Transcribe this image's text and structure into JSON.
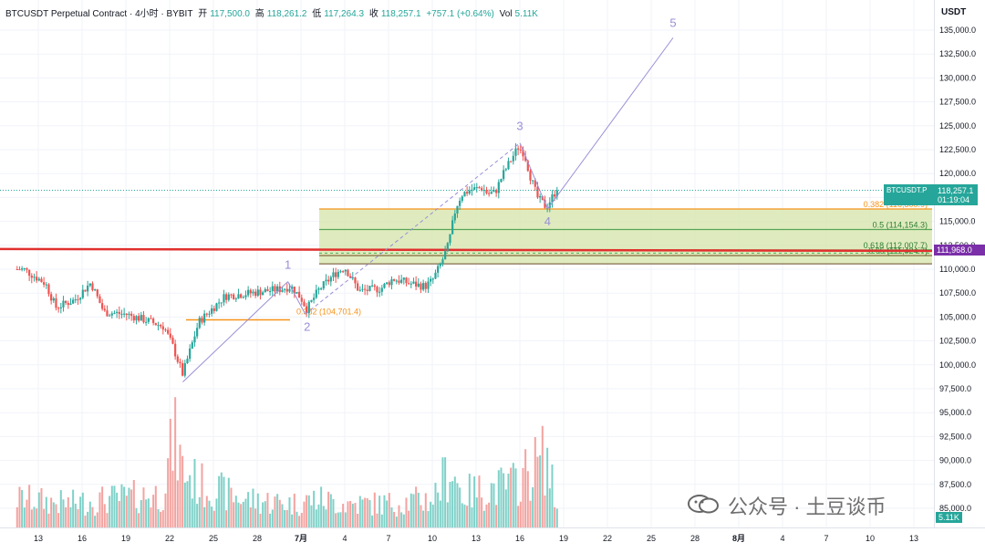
{
  "legend": {
    "symbol": "BTCUSDT Perpetual Contract · 4小时 · BYBIT",
    "open_label": "开",
    "open": "117,500.0",
    "high_label": "高",
    "high": "118,261.2",
    "low_label": "低",
    "low": "117,264.3",
    "close_label": "收",
    "close": "118,257.1",
    "change": "+757.1 (+0.64%)",
    "vol_label": "Vol",
    "vol": "5.11K"
  },
  "price_axis": {
    "currency": "USDT",
    "ticks": [
      "135,000.0",
      "132,500.0",
      "130,000.0",
      "127,500.0",
      "125,000.0",
      "122,500.0",
      "120,000.0",
      "117,500.0",
      "115,000.0",
      "112,500.0",
      "110,000.0",
      "107,500.0",
      "105,000.0",
      "102,500.0",
      "100,000.0",
      "97,500.0",
      "95,000.0",
      "92,500.0",
      "90,000.0",
      "87,500.0",
      "85,000.0"
    ],
    "tick_values": [
      135000,
      132500,
      130000,
      127500,
      125000,
      122500,
      120000,
      117500,
      115000,
      112500,
      110000,
      107500,
      105000,
      102500,
      100000,
      97500,
      95000,
      92500,
      90000,
      87500,
      85000
    ]
  },
  "time_axis": {
    "ticks": [
      "13",
      "16",
      "19",
      "22",
      "25",
      "28",
      "7月",
      "4",
      "7",
      "10",
      "13",
      "16",
      "19",
      "22",
      "25",
      "28",
      "8月",
      "4",
      "7",
      "10",
      "13"
    ]
  },
  "current_price_tag": {
    "symbol": "BTCUSDT.P",
    "price": "118,257.1",
    "countdown": "01:19:04"
  },
  "level_tag": {
    "price": "111,968.0"
  },
  "volume_tag": "5.11K",
  "fib_labels": {
    "f382": "0.382 (116,300.9)",
    "f5": "0.5 (114,154.3)",
    "f618": "0.618 (112,007.7)",
    "f65": "0.65 (111,424.7)",
    "f382b": "0.382 (104,701.4)"
  },
  "wave_labels": [
    "1",
    "2",
    "3",
    "4",
    "5"
  ],
  "watermark": "公众号 · 土豆谈币",
  "colors": {
    "up": "#26a69a",
    "down": "#ef5350",
    "vol_up": "#7fd1c8",
    "vol_down": "#f3a3a0",
    "fib_zone": "#d4e4a8",
    "wave": "#9a8fd6",
    "level_line": "#e0302e",
    "purple_tag": "#7b2fa8"
  },
  "chart_data": {
    "type": "candlestick",
    "title": "BTCUSDT Perpetual Contract · 4小时 · BYBIT",
    "ylabel": "USDT",
    "ylim": [
      84000,
      137000
    ],
    "x_range_days": [
      12,
      44
    ],
    "control_points": [
      [
        12.0,
        110000
      ],
      [
        13.5,
        108500
      ],
      [
        14.2,
        106000
      ],
      [
        15.5,
        106800
      ],
      [
        16.6,
        108600
      ],
      [
        17.5,
        105500
      ],
      [
        19.0,
        105300
      ],
      [
        20.5,
        104600
      ],
      [
        21.6,
        104000
      ],
      [
        22.2,
        102000
      ],
      [
        22.9,
        99000
      ],
      [
        23.5,
        102000
      ],
      [
        24.0,
        104500
      ],
      [
        25.0,
        106000
      ],
      [
        25.8,
        107200
      ],
      [
        27.5,
        107500
      ],
      [
        29.5,
        107900
      ],
      [
        30.3,
        108200
      ],
      [
        31.0,
        107000
      ],
      [
        31.4,
        105800
      ],
      [
        32.2,
        107800
      ],
      [
        33.3,
        109500
      ],
      [
        34.0,
        110200
      ],
      [
        35.0,
        107700
      ],
      [
        36.5,
        108000
      ],
      [
        37.3,
        109000
      ],
      [
        38.5,
        108500
      ],
      [
        39.5,
        108200
      ],
      [
        40.0,
        108800
      ],
      [
        40.6,
        110600
      ],
      [
        41.1,
        112500
      ],
      [
        41.6,
        116400
      ],
      [
        42.0,
        117800
      ],
      [
        42.6,
        118300
      ],
      [
        43.4,
        118500
      ],
      [
        43.8,
        117900
      ],
      [
        44.3,
        118000
      ],
      [
        44.8,
        119800
      ],
      [
        45.3,
        121200
      ],
      [
        45.9,
        122800
      ],
      [
        46.3,
        122100
      ],
      [
        46.7,
        119800
      ],
      [
        47.2,
        117500
      ],
      [
        47.8,
        116500
      ],
      [
        48.4,
        118000
      ],
      [
        48.6,
        118257
      ]
    ],
    "volume_profile": [
      [
        12.0,
        0.3
      ],
      [
        15.0,
        0.25
      ],
      [
        18.0,
        0.3
      ],
      [
        21.5,
        0.35
      ],
      [
        22.3,
        0.95
      ],
      [
        22.9,
        0.6
      ],
      [
        24.0,
        0.45
      ],
      [
        27.0,
        0.3
      ],
      [
        30.5,
        0.25
      ],
      [
        32.0,
        0.3
      ],
      [
        34.0,
        0.25
      ],
      [
        37.0,
        0.25
      ],
      [
        40.0,
        0.3
      ],
      [
        41.3,
        0.65
      ],
      [
        42.0,
        0.35
      ],
      [
        45.5,
        0.45
      ],
      [
        47.8,
        0.75
      ],
      [
        48.6,
        0.15
      ]
    ],
    "fib_levels": [
      {
        "ratio": 0.382,
        "price": 116300.9
      },
      {
        "ratio": 0.5,
        "price": 114154.3
      },
      {
        "ratio": 0.618,
        "price": 112007.7
      },
      {
        "ratio": 0.65,
        "price": 111424.7
      }
    ],
    "fib_382_lower": {
      "ratio": 0.382,
      "price": 104701.4
    },
    "horizontal_level": 111968.0,
    "waves": [
      {
        "label": "1",
        "day": 30.1,
        "price": 108700
      },
      {
        "label": "2",
        "day": 31.3,
        "price": 105300
      },
      {
        "label": "3",
        "day": 46.0,
        "price": 123200
      },
      {
        "label": "4",
        "day": 47.9,
        "price": 116300
      },
      {
        "label": "5",
        "day": 56.5,
        "price": 134200
      }
    ],
    "wave_start": {
      "day": 22.9,
      "price": 98200
    }
  }
}
